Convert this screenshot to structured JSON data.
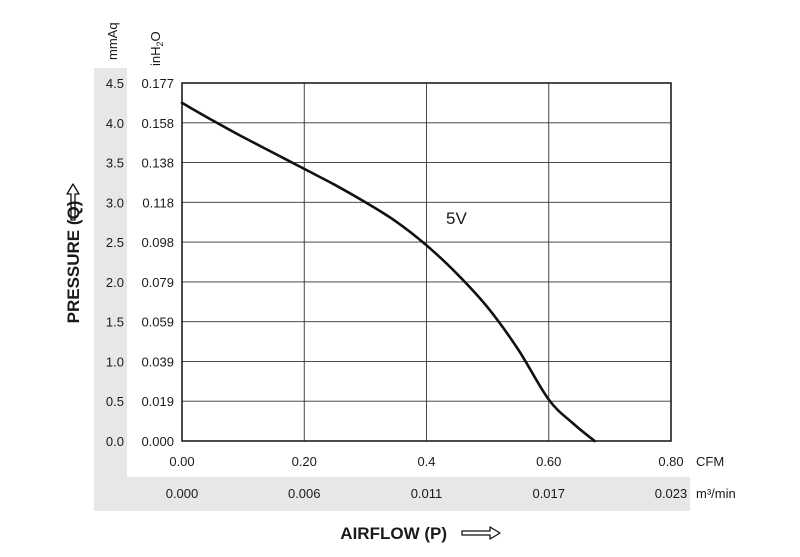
{
  "chart_data": {
    "type": "line",
    "xlabel": "AIRFLOW (P)",
    "ylabel": "PRESSURE (Q)",
    "x_primary_unit": "CFM",
    "x_secondary_unit": "m³/min",
    "y_primary_unit": "mmAq",
    "y_secondary_unit": "inH2O",
    "xlim": [
      0,
      0.8
    ],
    "ylim": [
      0,
      4.5
    ],
    "grid": true,
    "x_ticks": [
      "0.00",
      "0.20",
      "0.4",
      "0.60",
      "0.80"
    ],
    "x_ticks_secondary": [
      "0.000",
      "0.006",
      "0.011",
      "0.017",
      "0.023"
    ],
    "y_ticks": [
      "0.0",
      "0.5",
      "1.0",
      "1.5",
      "2.0",
      "2.5",
      "3.0",
      "3.5",
      "4.0",
      "4.5"
    ],
    "y_ticks_secondary": [
      "0.000",
      "0.019",
      "0.039",
      "0.059",
      "0.079",
      "0.098",
      "0.118",
      "0.138",
      "0.158",
      "0.177"
    ],
    "series": [
      {
        "name": "5V",
        "x": [
          0.0,
          0.05,
          0.1,
          0.15,
          0.2,
          0.25,
          0.3,
          0.35,
          0.4,
          0.45,
          0.5,
          0.55,
          0.6,
          0.64,
          0.675
        ],
        "y": [
          4.25,
          4.03,
          3.82,
          3.62,
          3.42,
          3.22,
          3.0,
          2.76,
          2.46,
          2.1,
          1.68,
          1.15,
          0.52,
          0.22,
          0.0
        ]
      }
    ],
    "colors": {
      "line": "#111111",
      "band": "#e6e7e9",
      "grid": "#333333"
    }
  }
}
